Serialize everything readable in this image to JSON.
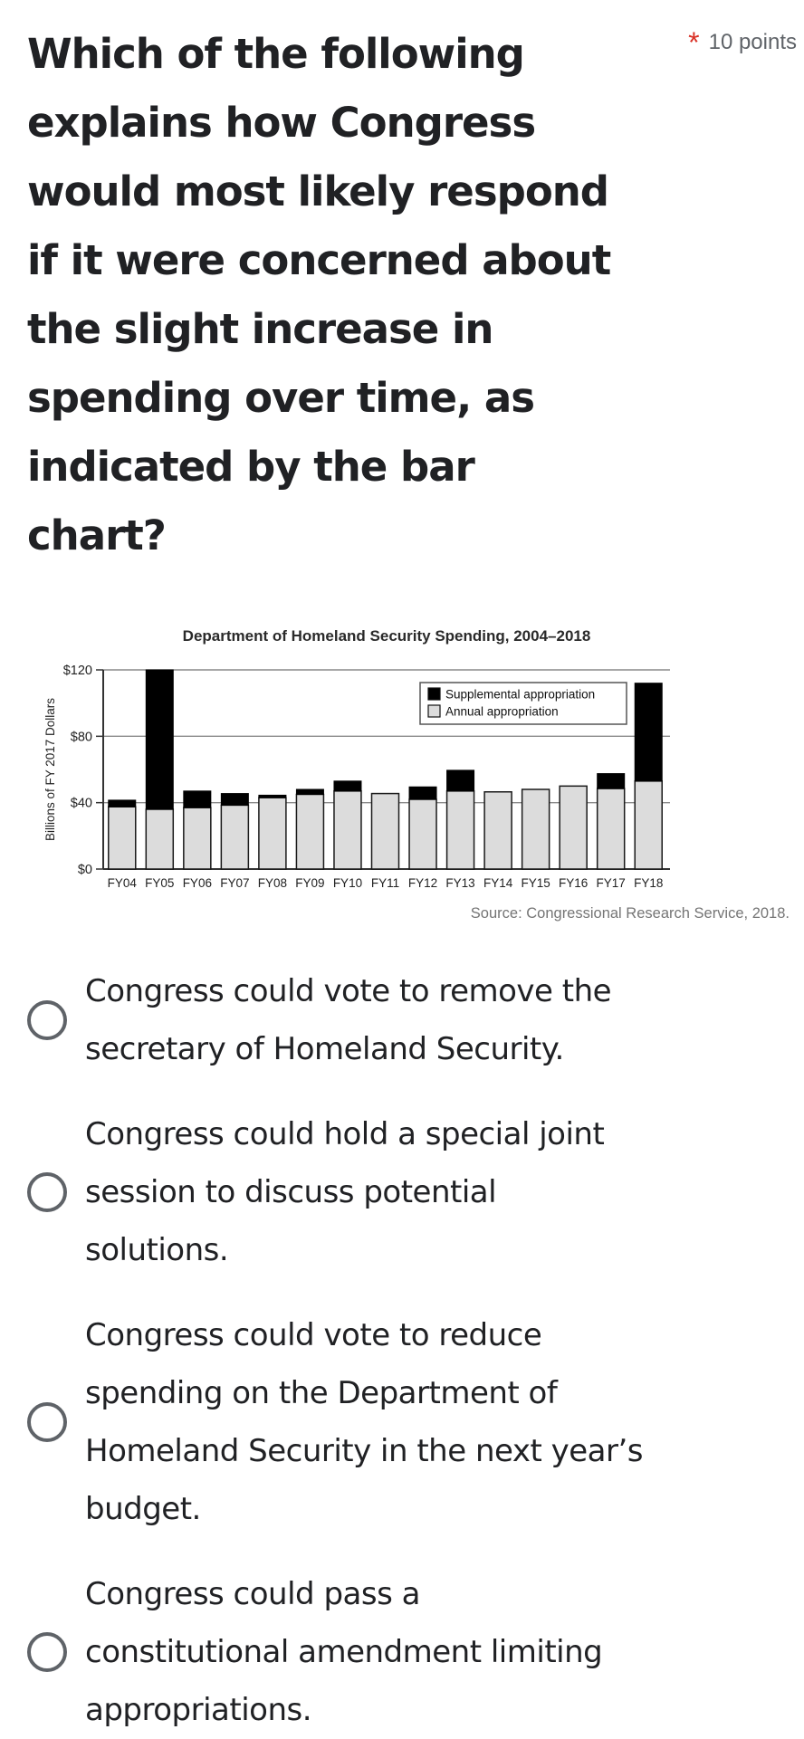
{
  "question": {
    "title_lines": [
      "Which of the following",
      "explains how Congress",
      "would most likely respond",
      "if it were concerned about",
      "the slight increase in",
      "spending over time, as",
      "indicated by the bar",
      "chart?"
    ],
    "required_marker": "*",
    "points_label": "10 points"
  },
  "chart_data": {
    "type": "bar",
    "stacked": true,
    "title": "Department of Homeland Security Spending, 2004–2018",
    "ylabel": "Billions of FY 2017 Dollars",
    "source": "Source: Congressional Research Service, 2018.",
    "categories": [
      "FY04",
      "FY05",
      "FY06",
      "FY07",
      "FY08",
      "FY09",
      "FY10",
      "FY11",
      "FY12",
      "FY13",
      "FY14",
      "FY15",
      "FY16",
      "FY17",
      "FY18"
    ],
    "series": [
      {
        "name": "Annual appropriation",
        "color": "#dcdcdc",
        "values": [
          37.5,
          36,
          37,
          38.5,
          43,
          45,
          47,
          45.5,
          42,
          47,
          46.5,
          48,
          50,
          48.5,
          53
        ]
      },
      {
        "name": "Supplemental appropriation",
        "color": "#000000",
        "values": [
          4,
          84,
          10,
          7,
          1.5,
          3,
          6,
          0,
          7.5,
          12.5,
          0,
          0,
          0,
          9,
          59
        ]
      }
    ],
    "ylim": [
      0,
      120
    ],
    "yticks": [
      0,
      40,
      80,
      120
    ],
    "ytick_labels": [
      "$0",
      "$40",
      "$80",
      "$120"
    ],
    "legend_position": "top-right",
    "legend_order": [
      "Supplemental appropriation",
      "Annual appropriation"
    ],
    "grid": true
  },
  "options": [
    {
      "lines": [
        "Congress could vote to remove the",
        "secretary of Homeland Security."
      ]
    },
    {
      "lines": [
        "Congress could hold a special joint",
        "session to discuss potential",
        "solutions."
      ]
    },
    {
      "lines": [
        "Congress could vote to reduce",
        "spending on the Department of",
        "Homeland Security in the next year’s",
        "budget."
      ]
    },
    {
      "lines": [
        "Congress could pass a",
        "constitutional amendment limiting",
        "appropriations."
      ]
    }
  ],
  "colors": {
    "question_text": "#202124",
    "points_text": "#5f6368",
    "required_asterisk": "#d93025",
    "radio_border": "#5f6368",
    "annual_bar": "#dcdcdc",
    "supplemental_bar": "#000000",
    "chart_source_text": "#757575"
  }
}
